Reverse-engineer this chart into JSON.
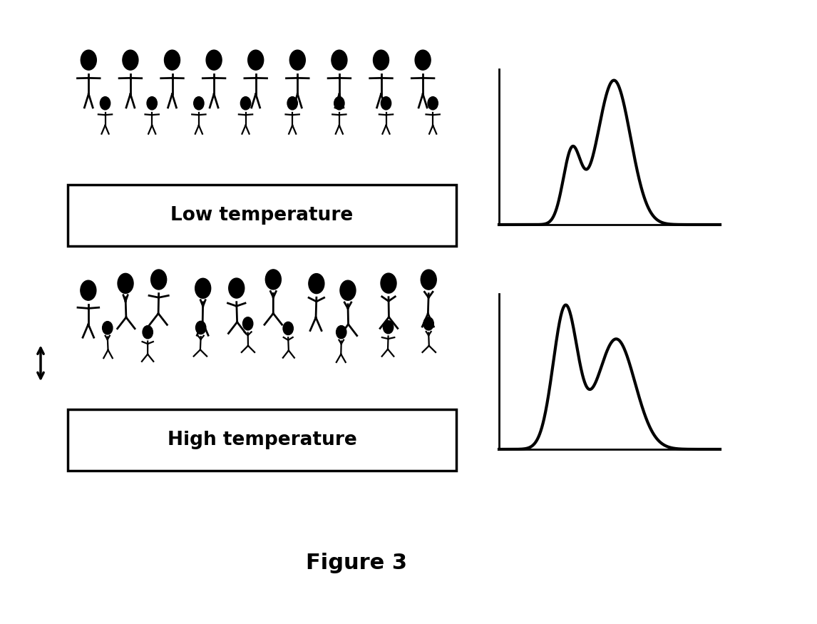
{
  "title": "Figure 3",
  "title_fontsize": 22,
  "title_fontweight": "bold",
  "bg_color": "#ffffff",
  "low_temp_label": "Low temperature",
  "high_temp_label": "High temperature",
  "label_fontsize": 19,
  "label_fontweight": "bold",
  "curve_color": "#000000",
  "linewidth": 3.0,
  "axis_linewidth": 2.0
}
